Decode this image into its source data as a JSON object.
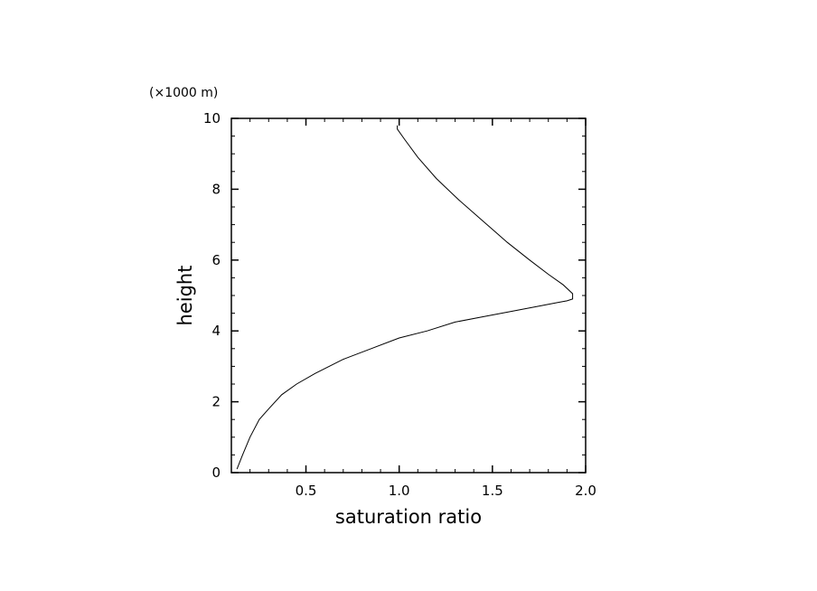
{
  "chart_data": {
    "type": "line",
    "title": "",
    "xlabel": "saturation ratio",
    "ylabel": "height",
    "yunit": "(×1000 m)",
    "xlim": [
      0.1,
      2.0
    ],
    "ylim": [
      0,
      10
    ],
    "xticks": [
      "0.5",
      "1.0",
      "1.5",
      "2.0"
    ],
    "yticks": [
      "0",
      "2",
      "4",
      "6",
      "8",
      "10"
    ],
    "xtick_values": [
      0.5,
      1.0,
      1.5,
      2.0
    ],
    "ytick_values": [
      0,
      2,
      4,
      6,
      8,
      10
    ],
    "grid": false,
    "line_color": "#000000",
    "series": [
      {
        "x": [
          0.13,
          0.16,
          0.2,
          0.25,
          0.3,
          0.37,
          0.45,
          0.55,
          0.7,
          0.85,
          1.0,
          1.15,
          1.3,
          1.45,
          1.6,
          1.75,
          1.85,
          1.9,
          1.93,
          1.93,
          1.88,
          1.8,
          1.7,
          1.58,
          1.45,
          1.32,
          1.2,
          1.1,
          1.03,
          0.99,
          0.99
        ],
        "y": [
          0.1,
          0.5,
          1.0,
          1.5,
          1.8,
          2.2,
          2.5,
          2.8,
          3.2,
          3.5,
          3.8,
          4.0,
          4.25,
          4.4,
          4.55,
          4.7,
          4.8,
          4.85,
          4.9,
          5.05,
          5.3,
          5.6,
          6.0,
          6.5,
          7.1,
          7.7,
          8.3,
          8.9,
          9.4,
          9.7,
          9.8
        ]
      }
    ]
  }
}
